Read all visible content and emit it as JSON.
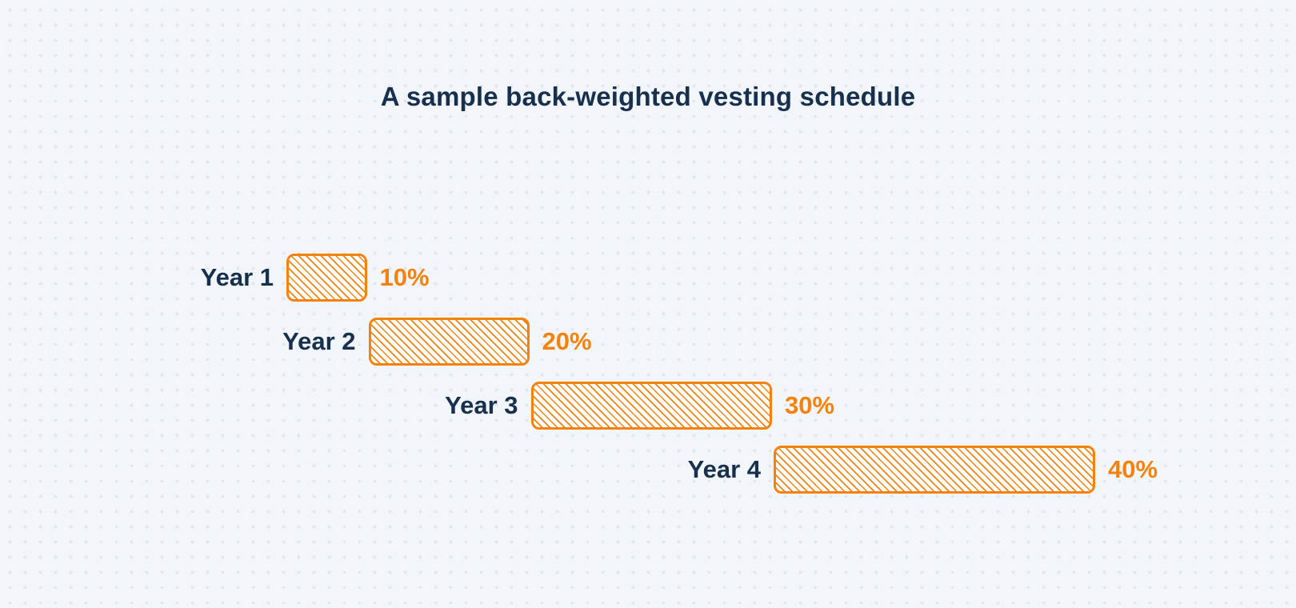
{
  "page": {
    "background_color": "#f2f5f9",
    "dot_grid_color": "#e2e6ed"
  },
  "chart_data": {
    "type": "bar",
    "variant": "gantt-waterfall",
    "orientation": "horizontal",
    "title": "A sample back-weighted vesting schedule",
    "categories": [
      "Year 1",
      "Year 2",
      "Year 3",
      "Year 4"
    ],
    "values": [
      10,
      20,
      30,
      40
    ],
    "starts": [
      0,
      10,
      30,
      60
    ],
    "value_labels": [
      "10%",
      "20%",
      "30%",
      "40%"
    ],
    "unit": "%",
    "xlim": [
      0,
      100
    ],
    "legend": false,
    "grid": "dotted-background",
    "bar_style": "diagonal-hatch",
    "colors": {
      "bar_hatch": "#f5820d",
      "bar_fill": "#ffffff",
      "category_text": "#17304e",
      "value_text": "#f5820d",
      "title_text": "#17304e"
    }
  }
}
